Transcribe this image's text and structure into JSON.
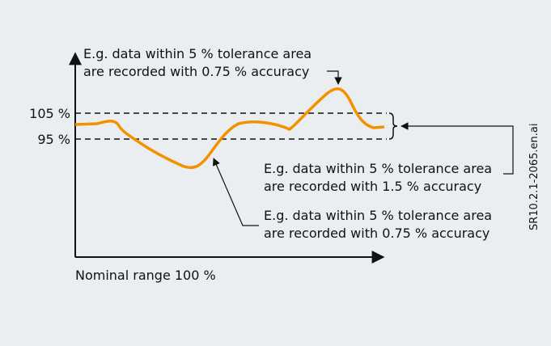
{
  "annotations": [
    {
      "lines": [
        "E.g. data within 5 % tolerance area",
        "are recorded with 0.75 % accuracy"
      ]
    },
    {
      "lines": [
        "E.g. data within 5 % tolerance area",
        "are recorded with 1.5 % accuracy"
      ]
    },
    {
      "lines": [
        "E.g. data within 5 % tolerance area",
        "are recorded with 0.75 % accuracy"
      ]
    }
  ],
  "levels": [
    "105 %",
    "95 %"
  ],
  "x_axis_label": "Nominal range 100 %",
  "file_id": "SR10.2.1-2065.en.ai"
}
